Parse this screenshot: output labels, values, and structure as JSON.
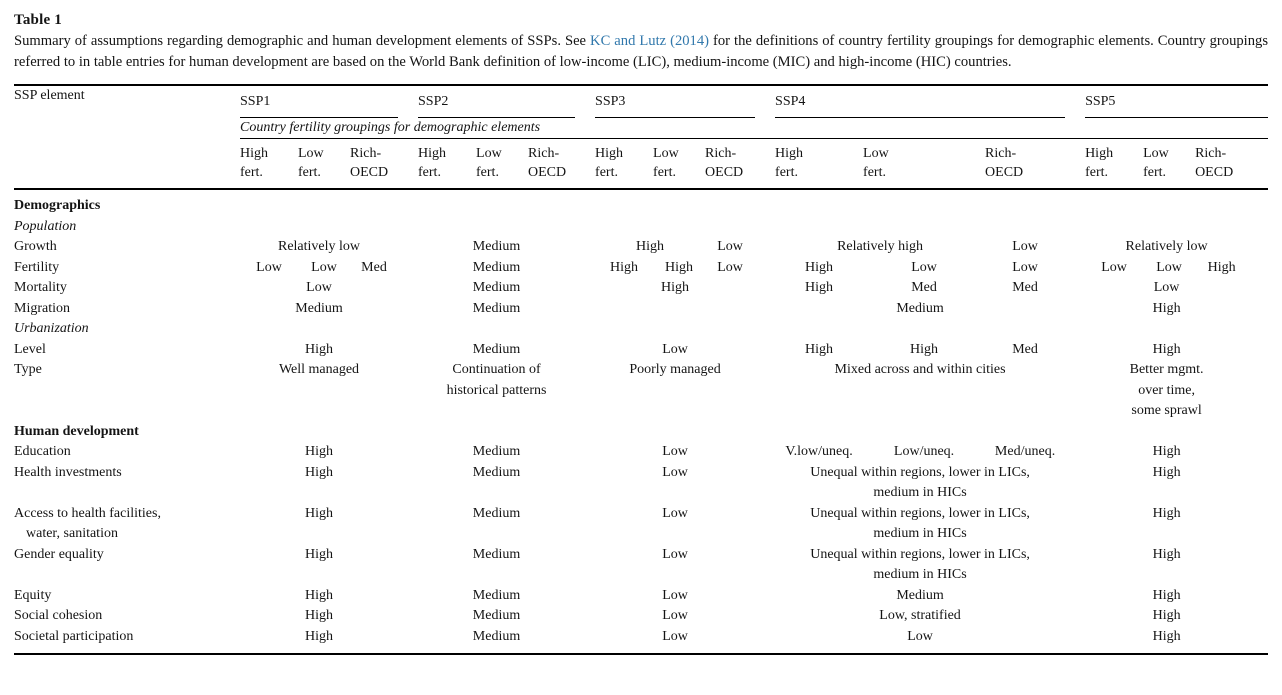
{
  "caption": {
    "label": "Table 1",
    "before_link": "Summary of assumptions regarding demographic and human development elements of SSPs. See ",
    "link_text": "KC and Lutz (2014)",
    "after_link": " for the definitions of country fertility groupings for demographic elements. Country groupings referred to in table entries for human development are based on the World Bank definition of low-income (LIC), medium-income (MIC) and high-income (HIC) countries.",
    "link_color": "#3178ac",
    "text_color": "#141414"
  },
  "table": {
    "corner_header": "SSP element",
    "group_headers": [
      "SSP1",
      "SSP2",
      "SSP3",
      "SSP4",
      "SSP5"
    ],
    "span_note": "Country fertility groupings for demographic elements",
    "sub_headers": [
      "High\nfert.",
      "Low\nfert.",
      "Rich-\nOECD"
    ],
    "rows": [
      {
        "label": "Demographics",
        "style": "section-bold",
        "cells": [
          {
            "span": 15,
            "text": ""
          }
        ]
      },
      {
        "label": "Population",
        "style": "section-italic",
        "cells": [
          {
            "span": 15,
            "text": ""
          }
        ]
      },
      {
        "label": "Growth",
        "cells": [
          {
            "span": 3,
            "text": "Relatively low"
          },
          {
            "span": 3,
            "text": "Medium"
          },
          {
            "span": 2,
            "text": "High"
          },
          {
            "span": 1,
            "text": "Low"
          },
          {
            "span": 2,
            "text": "Relatively high"
          },
          {
            "span": 1,
            "text": "Low"
          },
          {
            "span": 3,
            "text": "Relatively low"
          }
        ]
      },
      {
        "label": "Fertility",
        "cells": [
          {
            "span": 1,
            "text": "Low"
          },
          {
            "span": 1,
            "text": "Low"
          },
          {
            "span": 1,
            "text": "Med"
          },
          {
            "span": 3,
            "text": "Medium"
          },
          {
            "span": 1,
            "text": "High"
          },
          {
            "span": 1,
            "text": "High"
          },
          {
            "span": 1,
            "text": "Low"
          },
          {
            "span": 1,
            "text": "High"
          },
          {
            "span": 1,
            "text": "Low"
          },
          {
            "span": 1,
            "text": "Low"
          },
          {
            "span": 1,
            "text": "Low"
          },
          {
            "span": 1,
            "text": "Low"
          },
          {
            "span": 1,
            "text": "High"
          }
        ]
      },
      {
        "label": "Mortality",
        "cells": [
          {
            "span": 3,
            "text": "Low"
          },
          {
            "span": 3,
            "text": "Medium"
          },
          {
            "span": 3,
            "text": "High"
          },
          {
            "span": 1,
            "text": "High"
          },
          {
            "span": 1,
            "text": "Med"
          },
          {
            "span": 1,
            "text": "Med"
          },
          {
            "span": 3,
            "text": "Low"
          }
        ]
      },
      {
        "label": "Migration",
        "cells": [
          {
            "span": 3,
            "text": "Medium"
          },
          {
            "span": 3,
            "text": "Medium"
          },
          {
            "span": 3,
            "text": ""
          },
          {
            "span": 3,
            "text": "Medium"
          },
          {
            "span": 3,
            "text": "High"
          }
        ]
      },
      {
        "label": "Urbanization",
        "style": "section-italic",
        "cells": [
          {
            "span": 15,
            "text": ""
          }
        ]
      },
      {
        "label": "Level",
        "cells": [
          {
            "span": 3,
            "text": "High"
          },
          {
            "span": 3,
            "text": "Medium"
          },
          {
            "span": 3,
            "text": "Low"
          },
          {
            "span": 1,
            "text": "High"
          },
          {
            "span": 1,
            "text": "High"
          },
          {
            "span": 1,
            "text": "Med"
          },
          {
            "span": 3,
            "text": "High"
          }
        ]
      },
      {
        "label": "Type",
        "cells": [
          {
            "span": 3,
            "text": "Well managed"
          },
          {
            "span": 3,
            "text": "Continuation of\nhistorical patterns"
          },
          {
            "span": 3,
            "text": "Poorly managed"
          },
          {
            "span": 3,
            "text": "Mixed across and within cities"
          },
          {
            "span": 3,
            "text": "Better mgmt.\nover time,\nsome sprawl"
          }
        ]
      },
      {
        "label": "Human development",
        "style": "section-bold",
        "cells": [
          {
            "span": 15,
            "text": ""
          }
        ]
      },
      {
        "label": "Education",
        "cells": [
          {
            "span": 3,
            "text": "High"
          },
          {
            "span": 3,
            "text": "Medium"
          },
          {
            "span": 3,
            "text": "Low"
          },
          {
            "span": 1,
            "text": "V.low/uneq."
          },
          {
            "span": 1,
            "text": "Low/uneq."
          },
          {
            "span": 1,
            "text": "Med/uneq."
          },
          {
            "span": 3,
            "text": "High"
          }
        ]
      },
      {
        "label": "Health investments",
        "cells": [
          {
            "span": 3,
            "text": "High"
          },
          {
            "span": 3,
            "text": "Medium"
          },
          {
            "span": 3,
            "text": "Low"
          },
          {
            "span": 3,
            "text": "Unequal within regions, lower in LICs,\nmedium in HICs"
          },
          {
            "span": 3,
            "text": "High"
          }
        ]
      },
      {
        "label": "Access to health facilities,\nwater, sanitation",
        "cells": [
          {
            "span": 3,
            "text": "High"
          },
          {
            "span": 3,
            "text": "Medium"
          },
          {
            "span": 3,
            "text": "Low"
          },
          {
            "span": 3,
            "text": "Unequal within regions, lower in LICs,\nmedium in HICs"
          },
          {
            "span": 3,
            "text": "High"
          }
        ]
      },
      {
        "label": "Gender equality",
        "cells": [
          {
            "span": 3,
            "text": "High"
          },
          {
            "span": 3,
            "text": "Medium"
          },
          {
            "span": 3,
            "text": "Low"
          },
          {
            "span": 3,
            "text": "Unequal within regions, lower in LICs,\nmedium in HICs"
          },
          {
            "span": 3,
            "text": "High"
          }
        ]
      },
      {
        "label": "Equity",
        "cells": [
          {
            "span": 3,
            "text": "High"
          },
          {
            "span": 3,
            "text": "Medium"
          },
          {
            "span": 3,
            "text": "Low"
          },
          {
            "span": 3,
            "text": "Medium"
          },
          {
            "span": 3,
            "text": "High"
          }
        ]
      },
      {
        "label": "Social cohesion",
        "cells": [
          {
            "span": 3,
            "text": "High"
          },
          {
            "span": 3,
            "text": "Medium"
          },
          {
            "span": 3,
            "text": "Low"
          },
          {
            "span": 3,
            "text": "Low, stratified"
          },
          {
            "span": 3,
            "text": "High"
          }
        ]
      },
      {
        "label": "Societal participation",
        "cells": [
          {
            "span": 3,
            "text": "High"
          },
          {
            "span": 3,
            "text": "Medium"
          },
          {
            "span": 3,
            "text": "Low"
          },
          {
            "span": 3,
            "text": "Low"
          },
          {
            "span": 3,
            "text": "High"
          }
        ]
      }
    ]
  }
}
